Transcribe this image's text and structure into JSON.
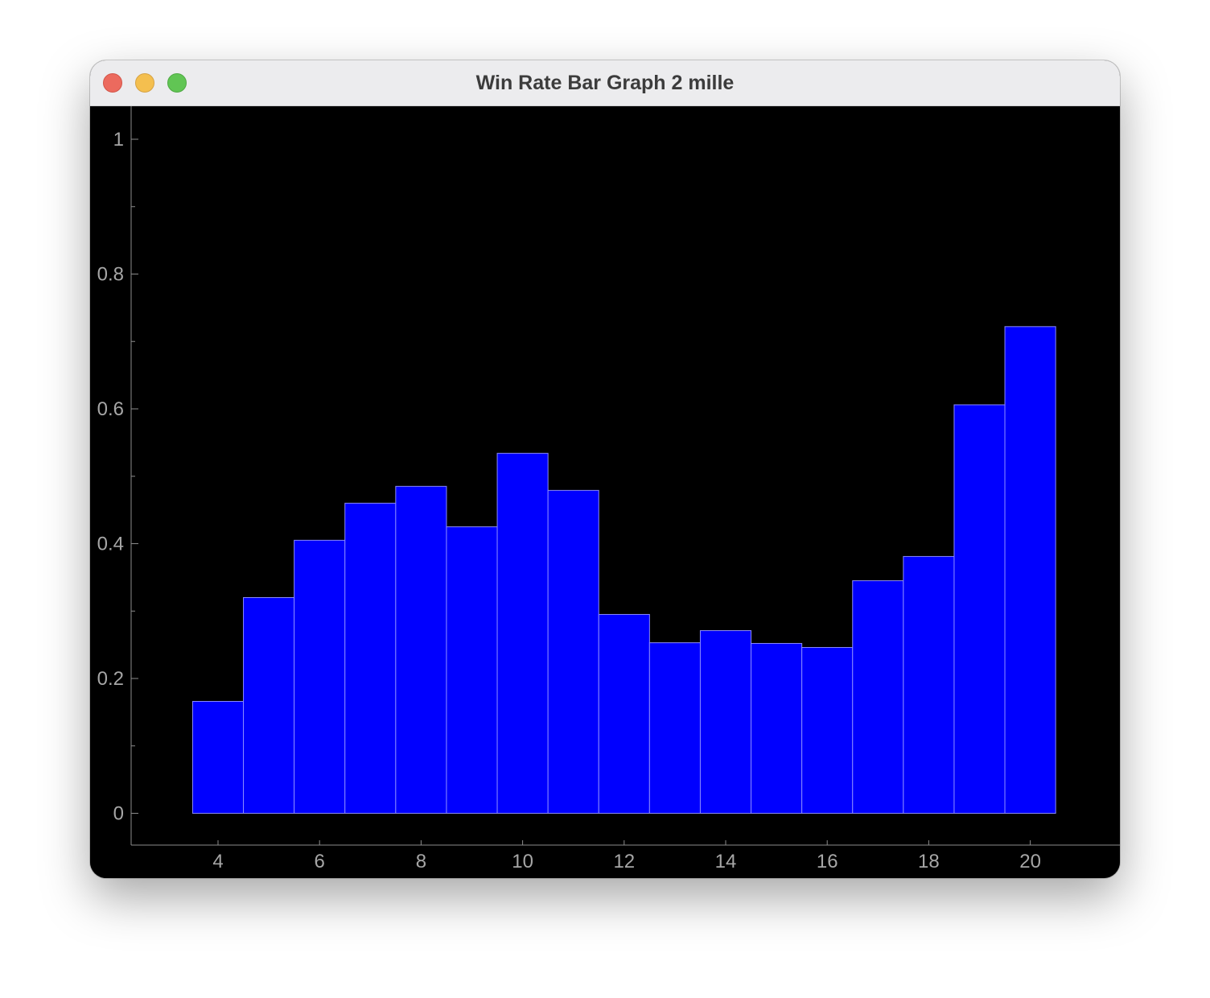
{
  "window": {
    "title": "Win Rate Bar Graph 2 mille"
  },
  "colors": {
    "bar_fill": "#0000ff",
    "bar_stroke": "#8a8aff",
    "axis": "#8c8c8c",
    "tick_label": "#a6a6a6",
    "background": "#000000"
  },
  "chart_data": {
    "type": "bar",
    "title": "",
    "xlabel": "",
    "ylabel": "",
    "x": [
      4,
      5,
      6,
      7,
      8,
      9,
      10,
      11,
      12,
      13,
      14,
      15,
      16,
      17,
      18,
      19,
      20
    ],
    "values": [
      0.166,
      0.32,
      0.405,
      0.46,
      0.485,
      0.425,
      0.534,
      0.479,
      0.295,
      0.253,
      0.271,
      0.252,
      0.246,
      0.345,
      0.381,
      0.606,
      0.722
    ],
    "bar_width": 1,
    "xlim": [
      2.3,
      21.5
    ],
    "ylim": [
      -0.05,
      1.05
    ],
    "xticks": [
      4,
      6,
      8,
      10,
      12,
      14,
      16,
      18,
      20
    ],
    "xtick_labels": [
      "4",
      "6",
      "8",
      "10",
      "12",
      "14",
      "16",
      "18",
      "20"
    ],
    "yticks": [
      0,
      0.2,
      0.4,
      0.6,
      0.8,
      1
    ],
    "ytick_labels": [
      "0",
      "0.2",
      "0.4",
      "0.6",
      "0.8",
      "1"
    ],
    "yminor_ticks": [
      0.1,
      0.3,
      0.5,
      0.7,
      0.9
    ],
    "grid": false,
    "legend": "none"
  }
}
